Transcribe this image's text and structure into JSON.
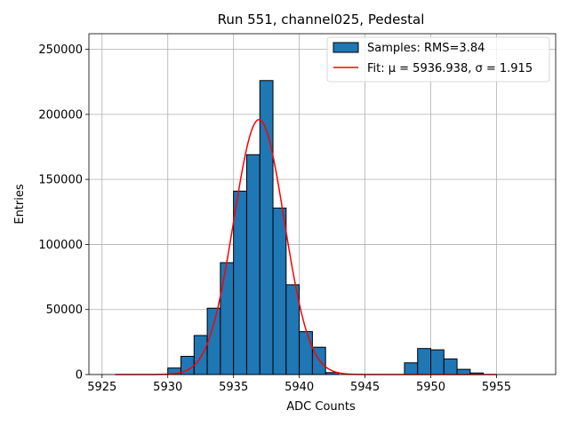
{
  "chart_data": {
    "type": "bar",
    "title": "Run 551, channel025, Pedestal",
    "xlabel": "ADC Counts",
    "ylabel": "Entries",
    "xlim": [
      5924,
      5959.5
    ],
    "ylim": [
      0,
      262000
    ],
    "grid": true,
    "legend_position": "top-right",
    "x_ticks": [
      5925,
      5930,
      5935,
      5940,
      5945,
      5950,
      5955
    ],
    "y_ticks": [
      0,
      50000,
      100000,
      150000,
      200000,
      250000
    ],
    "histogram": {
      "name": "Samples: RMS=3.84",
      "color": "#1f77b4",
      "bin_width": 1,
      "bins": [
        {
          "left": 5929.5,
          "count": 0
        },
        {
          "left": 5930,
          "count": 5000
        },
        {
          "left": 5931,
          "count": 14000
        },
        {
          "left": 5932,
          "count": 30000
        },
        {
          "left": 5933,
          "count": 51000
        },
        {
          "left": 5934,
          "count": 86000
        },
        {
          "left": 5935,
          "count": 141000
        },
        {
          "left": 5936,
          "count": 169000
        },
        {
          "left": 5937,
          "count": 226000
        },
        {
          "left": 5938,
          "count": 128000
        },
        {
          "left": 5939,
          "count": 69000
        },
        {
          "left": 5940,
          "count": 33000
        },
        {
          "left": 5941,
          "count": 21000
        },
        {
          "left": 5942,
          "count": 1500
        },
        {
          "left": 5948,
          "count": 9000
        },
        {
          "left": 5949,
          "count": 20000
        },
        {
          "left": 5950,
          "count": 19000
        },
        {
          "left": 5951,
          "count": 12000
        },
        {
          "left": 5952,
          "count": 4000
        },
        {
          "left": 5953,
          "count": 1200
        }
      ]
    },
    "fit": {
      "name_prefix": "Fit: μ = 5936.938, σ = 1.915",
      "color": "#ff0000",
      "mu": 5936.938,
      "sigma": 1.915,
      "amplitude": 196000,
      "x_range": [
        5926,
        5955
      ]
    }
  }
}
